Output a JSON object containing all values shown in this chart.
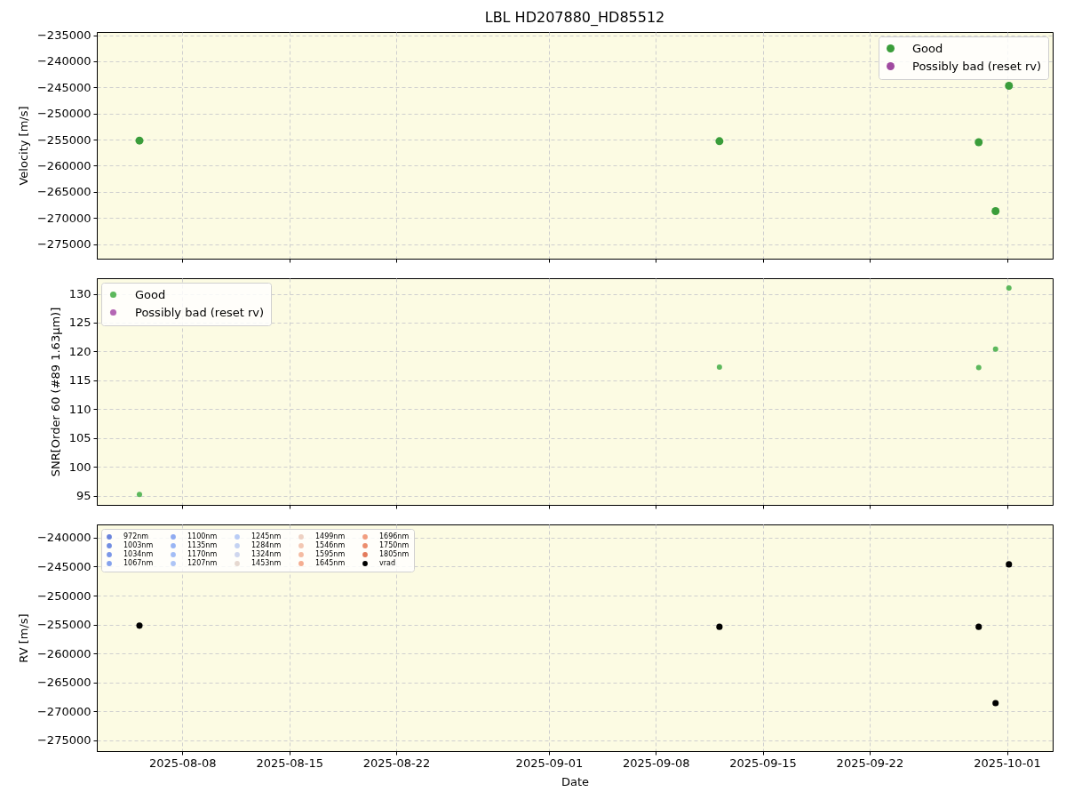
{
  "chart_data": [
    {
      "type": "scatter",
      "title": "LBL HD207880_HD85512",
      "ylabel": "Velocity [m/s]",
      "x": [
        "2025-08-05T04:30",
        "2025-09-12T04:00",
        "2025-09-29T03:30",
        "2025-09-30T06:00",
        "2025-10-01T03:00"
      ],
      "series": [
        {
          "name": "Good",
          "color": "#3a9d3a",
          "values": [
            -255200,
            -255300,
            -255500,
            -268700,
            -244700
          ]
        },
        {
          "name": "Possibly bad (reset rv)",
          "color": "#a04aa0",
          "values": [
            null,
            null,
            null,
            null,
            null
          ]
        }
      ],
      "xlim": [
        "2025-08-02T09:30",
        "2025-10-03T23:45"
      ],
      "xticks": [
        "2025-08-08",
        "2025-08-15",
        "2025-08-22",
        "2025-09-01",
        "2025-09-08",
        "2025-09-15",
        "2025-09-22",
        "2025-10-01"
      ],
      "ylim": [
        -277800,
        -234400
      ],
      "yticks": [
        -275000,
        -270000,
        -265000,
        -260000,
        -255000,
        -250000,
        -245000,
        -240000,
        -235000
      ],
      "grid": true,
      "legend": "top right",
      "tick_labels": "y",
      "marker": "circle"
    },
    {
      "type": "scatter",
      "ylabel": "SNR[Order 60 (#89 1.63μm)]",
      "x": [
        "2025-08-05T04:30",
        "2025-09-12T04:00",
        "2025-09-29T03:30",
        "2025-09-30T06:00",
        "2025-10-01T03:00"
      ],
      "series": [
        {
          "name": "Good",
          "color": "#5cb85c",
          "values": [
            95.2,
            117.3,
            117.2,
            120.4,
            131.0
          ]
        },
        {
          "name": "Possibly bad (reset rv)",
          "color": "#b466b4",
          "values": [
            null,
            null,
            null,
            null,
            null
          ]
        }
      ],
      "xlim": [
        "2025-08-02T09:30",
        "2025-10-03T23:45"
      ],
      "xticks": [
        "2025-08-08",
        "2025-08-15",
        "2025-08-22",
        "2025-09-01",
        "2025-09-08",
        "2025-09-15",
        "2025-09-22",
        "2025-10-01"
      ],
      "ylim": [
        93.4,
        132.7
      ],
      "yticks": [
        95,
        100,
        105,
        110,
        115,
        120,
        125,
        130
      ],
      "grid": true,
      "legend": "top left",
      "tick_labels": "y",
      "marker": "circle"
    },
    {
      "type": "scatter",
      "xlabel": "Date",
      "ylabel": "RV [m/s]",
      "x": [
        "2025-08-05T04:30",
        "2025-09-12T04:00",
        "2025-09-29T03:30",
        "2025-09-30T06:00",
        "2025-10-01T03:00"
      ],
      "series": [
        {
          "name": "972nm",
          "color": "#6a84dc",
          "values": [
            null,
            null,
            null,
            null,
            null
          ]
        },
        {
          "name": "1003nm",
          "color": "#728ee2",
          "values": [
            null,
            null,
            null,
            null,
            null
          ]
        },
        {
          "name": "1034nm",
          "color": "#7b97e8",
          "values": [
            null,
            null,
            null,
            null,
            null
          ]
        },
        {
          "name": "1067nm",
          "color": "#85a2ed",
          "values": [
            null,
            null,
            null,
            null,
            null
          ]
        },
        {
          "name": "1100nm",
          "color": "#8fabf1",
          "values": [
            null,
            null,
            null,
            null,
            null
          ]
        },
        {
          "name": "1135nm",
          "color": "#99b5f4",
          "values": [
            null,
            null,
            null,
            null,
            null
          ]
        },
        {
          "name": "1170nm",
          "color": "#a3bdf6",
          "values": [
            null,
            null,
            null,
            null,
            null
          ]
        },
        {
          "name": "1207nm",
          "color": "#aec5f6",
          "values": [
            null,
            null,
            null,
            null,
            null
          ]
        },
        {
          "name": "1245nm",
          "color": "#b9ccf5",
          "values": [
            null,
            null,
            null,
            null,
            null
          ]
        },
        {
          "name": "1284nm",
          "color": "#c4d2f2",
          "values": [
            null,
            null,
            null,
            null,
            null
          ]
        },
        {
          "name": "1324nm",
          "color": "#cfd6ee",
          "values": [
            null,
            null,
            null,
            null,
            null
          ]
        },
        {
          "name": "1453nm",
          "color": "#e6d8d0",
          "values": [
            null,
            null,
            null,
            null,
            null
          ]
        },
        {
          "name": "1499nm",
          "color": "#eed1c3",
          "values": [
            null,
            null,
            null,
            null,
            null
          ]
        },
        {
          "name": "1546nm",
          "color": "#f3c7b3",
          "values": [
            null,
            null,
            null,
            null,
            null
          ]
        },
        {
          "name": "1595nm",
          "color": "#f5bba2",
          "values": [
            null,
            null,
            null,
            null,
            null
          ]
        },
        {
          "name": "1645nm",
          "color": "#f5ad91",
          "values": [
            null,
            null,
            null,
            null,
            null
          ]
        },
        {
          "name": "1696nm",
          "color": "#f29e7f",
          "values": [
            null,
            null,
            null,
            null,
            null
          ]
        },
        {
          "name": "1750nm",
          "color": "#ec8d6d",
          "values": [
            null,
            null,
            null,
            null,
            null
          ]
        },
        {
          "name": "1805nm",
          "color": "#e37b5c",
          "values": [
            null,
            null,
            null,
            null,
            null
          ]
        },
        {
          "name": "vrad",
          "color": "#000000",
          "values": [
            -255200,
            -255400,
            -255400,
            -268600,
            -244600
          ]
        }
      ],
      "xlim": [
        "2025-08-02T09:30",
        "2025-10-03T23:45"
      ],
      "xticks": [
        "2025-08-08",
        "2025-08-15",
        "2025-08-22",
        "2025-09-01",
        "2025-09-08",
        "2025-09-15",
        "2025-09-22",
        "2025-10-01"
      ],
      "ylim": [
        -276900,
        -237700
      ],
      "yticks": [
        -275000,
        -270000,
        -265000,
        -260000,
        -255000,
        -250000,
        -245000,
        -240000
      ],
      "grid": true,
      "legend": "top left",
      "marker": "circle"
    }
  ]
}
